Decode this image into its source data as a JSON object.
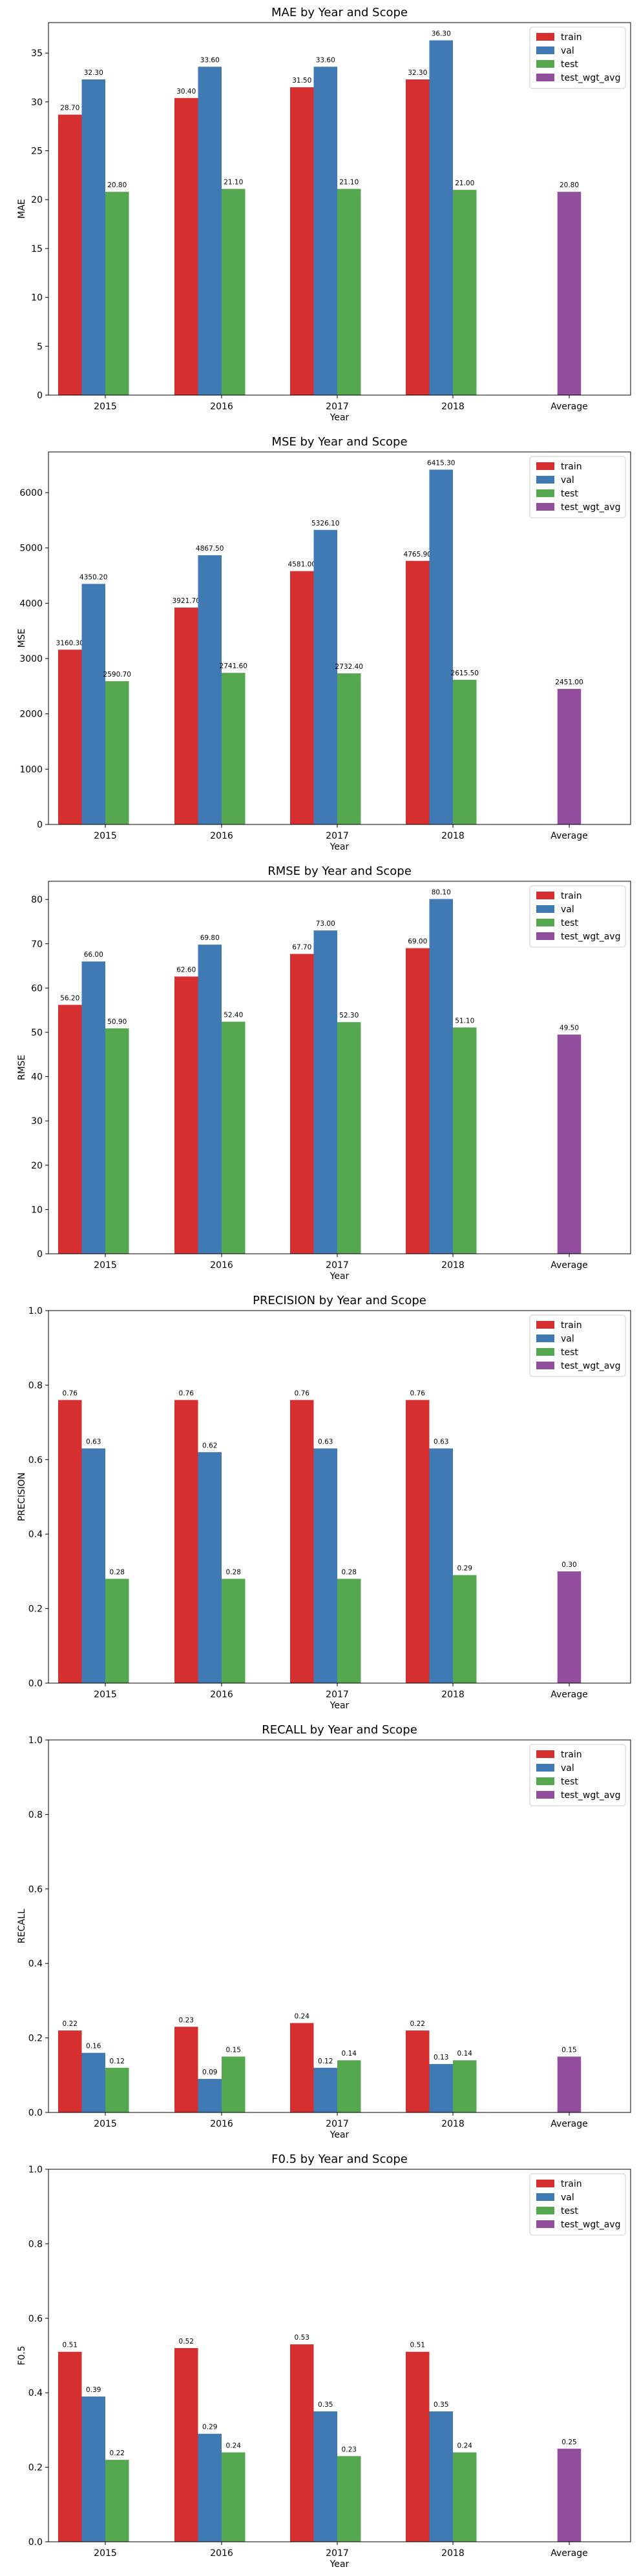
{
  "colors": {
    "train": "#d62f2f",
    "val": "#3f7ab5",
    "test": "#55a84f",
    "test_wgt_avg": "#914e9d"
  },
  "chart_data": [
    {
      "type": "bar",
      "title": "MAE by Year and Scope",
      "xlabel": "Year",
      "ylabel": "MAE",
      "categories": [
        "2015",
        "2016",
        "2017",
        "2018",
        "Average"
      ],
      "ylim": [
        0,
        38.115
      ],
      "yticks": [
        0,
        5,
        10,
        15,
        20,
        25,
        30,
        35
      ],
      "ytick_labels": [
        "0",
        "5",
        "10",
        "15",
        "20",
        "25",
        "30",
        "35"
      ],
      "legend": "top-right",
      "series": [
        {
          "name": "train",
          "values": [
            28.7,
            30.4,
            31.5,
            32.3,
            null
          ],
          "labels": [
            "28.70",
            "30.40",
            "31.50",
            "32.30",
            null
          ]
        },
        {
          "name": "val",
          "values": [
            32.3,
            33.6,
            33.6,
            36.3,
            null
          ],
          "labels": [
            "32.30",
            "33.60",
            "33.60",
            "36.30",
            null
          ]
        },
        {
          "name": "test",
          "values": [
            20.8,
            21.1,
            21.1,
            21.0,
            null
          ],
          "labels": [
            "20.80",
            "21.10",
            "21.10",
            "21.00",
            null
          ]
        },
        {
          "name": "test_wgt_avg",
          "values": [
            null,
            null,
            null,
            null,
            20.8
          ],
          "labels": [
            null,
            null,
            null,
            null,
            "20.80"
          ]
        }
      ]
    },
    {
      "type": "bar",
      "title": "MSE by Year and Scope",
      "xlabel": "Year",
      "ylabel": "MSE",
      "categories": [
        "2015",
        "2016",
        "2017",
        "2018",
        "Average"
      ],
      "ylim": [
        0,
        6736.07
      ],
      "yticks": [
        0,
        1000,
        2000,
        3000,
        4000,
        5000,
        6000
      ],
      "ytick_labels": [
        "0",
        "1000",
        "2000",
        "3000",
        "4000",
        "5000",
        "6000"
      ],
      "legend": "top-right",
      "series": [
        {
          "name": "train",
          "values": [
            3160.3,
            3921.7,
            4581.0,
            4765.9,
            null
          ],
          "labels": [
            "3160.30",
            "3921.70",
            "4581.00",
            "4765.90",
            null
          ]
        },
        {
          "name": "val",
          "values": [
            4350.2,
            4867.5,
            5326.1,
            6415.3,
            null
          ],
          "labels": [
            "4350.20",
            "4867.50",
            "5326.10",
            "6415.30",
            null
          ]
        },
        {
          "name": "test",
          "values": [
            2590.7,
            2741.6,
            2732.4,
            2615.5,
            null
          ],
          "labels": [
            "2590.70",
            "2741.60",
            "2732.40",
            "2615.50",
            null
          ]
        },
        {
          "name": "test_wgt_avg",
          "values": [
            null,
            null,
            null,
            null,
            2451.0
          ],
          "labels": [
            null,
            null,
            null,
            null,
            "2451.00"
          ]
        }
      ]
    },
    {
      "type": "bar",
      "title": "RMSE by Year and Scope",
      "xlabel": "Year",
      "ylabel": "RMSE",
      "categories": [
        "2015",
        "2016",
        "2017",
        "2018",
        "Average"
      ],
      "ylim": [
        0,
        84.105
      ],
      "yticks": [
        0,
        10,
        20,
        30,
        40,
        50,
        60,
        70,
        80
      ],
      "ytick_labels": [
        "0",
        "10",
        "20",
        "30",
        "40",
        "50",
        "60",
        "70",
        "80"
      ],
      "legend": "top-right",
      "series": [
        {
          "name": "train",
          "values": [
            56.2,
            62.6,
            67.7,
            69.0,
            null
          ],
          "labels": [
            "56.20",
            "62.60",
            "67.70",
            "69.00",
            null
          ]
        },
        {
          "name": "val",
          "values": [
            66.0,
            69.8,
            73.0,
            80.1,
            null
          ],
          "labels": [
            "66.00",
            "69.80",
            "73.00",
            "80.10",
            null
          ]
        },
        {
          "name": "test",
          "values": [
            50.9,
            52.4,
            52.3,
            51.1,
            null
          ],
          "labels": [
            "50.90",
            "52.40",
            "52.30",
            "51.10",
            null
          ]
        },
        {
          "name": "test_wgt_avg",
          "values": [
            null,
            null,
            null,
            null,
            49.5
          ],
          "labels": [
            null,
            null,
            null,
            null,
            "49.50"
          ]
        }
      ]
    },
    {
      "type": "bar",
      "title": "PRECISION by Year and Scope",
      "xlabel": "Year",
      "ylabel": "PRECISION",
      "categories": [
        "2015",
        "2016",
        "2017",
        "2018",
        "Average"
      ],
      "ylim": [
        0,
        1.0
      ],
      "yticks": [
        0,
        0.2,
        0.4,
        0.6,
        0.8,
        1.0
      ],
      "ytick_labels": [
        "0.0",
        "0.2",
        "0.4",
        "0.6",
        "0.8",
        "1.0"
      ],
      "legend": "top-right",
      "series": [
        {
          "name": "train",
          "values": [
            0.76,
            0.76,
            0.76,
            0.76,
            null
          ],
          "labels": [
            "0.76",
            "0.76",
            "0.76",
            "0.76",
            null
          ]
        },
        {
          "name": "val",
          "values": [
            0.63,
            0.62,
            0.63,
            0.63,
            null
          ],
          "labels": [
            "0.63",
            "0.62",
            "0.63",
            "0.63",
            null
          ]
        },
        {
          "name": "test",
          "values": [
            0.28,
            0.28,
            0.28,
            0.29,
            null
          ],
          "labels": [
            "0.28",
            "0.28",
            "0.28",
            "0.29",
            null
          ]
        },
        {
          "name": "test_wgt_avg",
          "values": [
            null,
            null,
            null,
            null,
            0.3
          ],
          "labels": [
            null,
            null,
            null,
            null,
            "0.30"
          ]
        }
      ]
    },
    {
      "type": "bar",
      "title": "RECALL by Year and Scope",
      "xlabel": "Year",
      "ylabel": "RECALL",
      "categories": [
        "2015",
        "2016",
        "2017",
        "2018",
        "Average"
      ],
      "ylim": [
        0,
        1.0
      ],
      "yticks": [
        0,
        0.2,
        0.4,
        0.6,
        0.8,
        1.0
      ],
      "ytick_labels": [
        "0.0",
        "0.2",
        "0.4",
        "0.6",
        "0.8",
        "1.0"
      ],
      "legend": "top-right",
      "series": [
        {
          "name": "train",
          "values": [
            0.22,
            0.23,
            0.24,
            0.22,
            null
          ],
          "labels": [
            "0.22",
            "0.23",
            "0.24",
            "0.22",
            null
          ]
        },
        {
          "name": "val",
          "values": [
            0.16,
            0.09,
            0.12,
            0.13,
            null
          ],
          "labels": [
            "0.16",
            "0.09",
            "0.12",
            "0.13",
            null
          ]
        },
        {
          "name": "test",
          "values": [
            0.12,
            0.15,
            0.14,
            0.14,
            null
          ],
          "labels": [
            "0.12",
            "0.15",
            "0.14",
            "0.14",
            null
          ]
        },
        {
          "name": "test_wgt_avg",
          "values": [
            null,
            null,
            null,
            null,
            0.15
          ],
          "labels": [
            null,
            null,
            null,
            null,
            "0.15"
          ]
        }
      ]
    },
    {
      "type": "bar",
      "title": "F0.5 by Year and Scope",
      "xlabel": "Year",
      "ylabel": "F0.5",
      "categories": [
        "2015",
        "2016",
        "2017",
        "2018",
        "Average"
      ],
      "ylim": [
        0,
        1.0
      ],
      "yticks": [
        0,
        0.2,
        0.4,
        0.6,
        0.8,
        1.0
      ],
      "ytick_labels": [
        "0.0",
        "0.2",
        "0.4",
        "0.6",
        "0.8",
        "1.0"
      ],
      "legend": "top-right",
      "series": [
        {
          "name": "train",
          "values": [
            0.51,
            0.52,
            0.53,
            0.51,
            null
          ],
          "labels": [
            "0.51",
            "0.52",
            "0.53",
            "0.51",
            null
          ]
        },
        {
          "name": "val",
          "values": [
            0.39,
            0.29,
            0.35,
            0.35,
            null
          ],
          "labels": [
            "0.39",
            "0.29",
            "0.35",
            "0.35",
            null
          ]
        },
        {
          "name": "test",
          "values": [
            0.22,
            0.24,
            0.23,
            0.24,
            null
          ],
          "labels": [
            "0.22",
            "0.24",
            "0.23",
            "0.24",
            null
          ]
        },
        {
          "name": "test_wgt_avg",
          "values": [
            null,
            null,
            null,
            null,
            0.25
          ],
          "labels": [
            null,
            null,
            null,
            null,
            "0.25"
          ]
        }
      ]
    }
  ]
}
